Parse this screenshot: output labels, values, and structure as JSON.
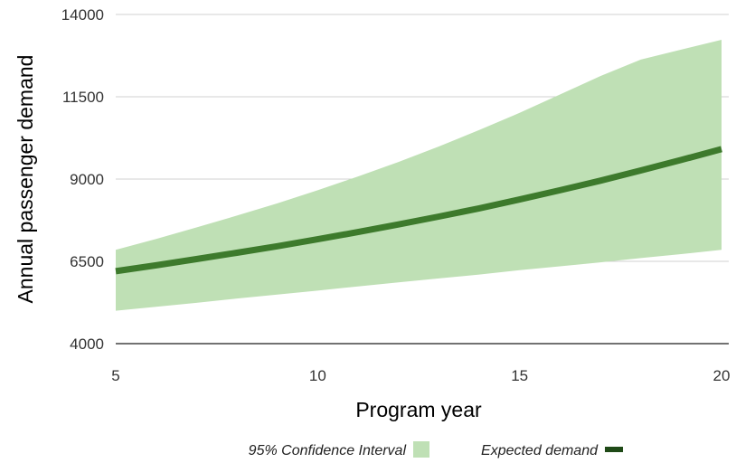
{
  "chart_data": {
    "type": "line",
    "xlabel": "Program year",
    "ylabel": "Annual passenger demand",
    "xlim": [
      5,
      20
    ],
    "ylim": [
      4000,
      14000
    ],
    "x_ticks": [
      5,
      10,
      15,
      20
    ],
    "y_ticks": [
      4000,
      6500,
      9000,
      11500,
      14000
    ],
    "grid": "horizontal",
    "legend_position": "bottom",
    "series": [
      {
        "name": "95% Confidence Interval",
        "kind": "band",
        "color": "#bfe0b5",
        "x": [
          5,
          6,
          7,
          8,
          9,
          10,
          11,
          12,
          13,
          14,
          15,
          16,
          17,
          18,
          19,
          20
        ],
        "lower": [
          5000,
          5120,
          5240,
          5370,
          5490,
          5610,
          5740,
          5860,
          5980,
          6100,
          6230,
          6350,
          6470,
          6600,
          6720,
          6850
        ],
        "upper": [
          6850,
          7180,
          7530,
          7890,
          8260,
          8660,
          9080,
          9520,
          9990,
          10490,
          11010,
          11570,
          12130,
          12630,
          12930,
          13230
        ]
      },
      {
        "name": "Expected demand",
        "kind": "line",
        "color": "#3d7a2c",
        "x": [
          5,
          6,
          7,
          8,
          9,
          10,
          11,
          12,
          13,
          14,
          15,
          16,
          17,
          18,
          19,
          20
        ],
        "values": [
          6200,
          6380,
          6570,
          6760,
          6960,
          7170,
          7390,
          7620,
          7860,
          8110,
          8380,
          8660,
          8950,
          9260,
          9580,
          9910
        ]
      }
    ]
  }
}
